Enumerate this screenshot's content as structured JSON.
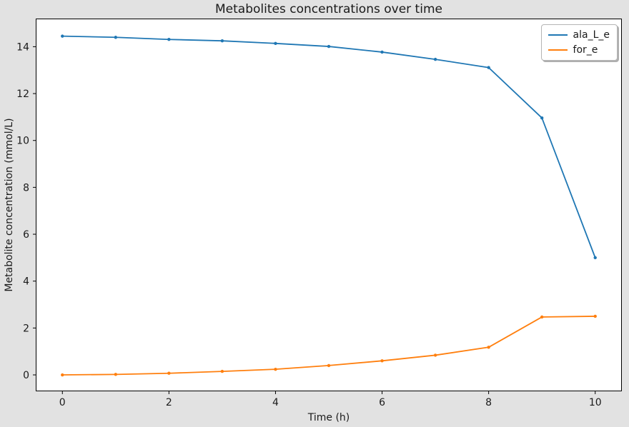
{
  "figure": {
    "background_color": "#e2e2e2",
    "plot_background_color": "#ffffff",
    "spine_color": "#000000"
  },
  "chart_data": {
    "type": "line",
    "title": "Metabolites concentrations over time",
    "xlabel": "Time (h)",
    "ylabel": "Metabolite concentration (mmol/L)",
    "x": [
      0,
      1,
      2,
      3,
      4,
      5,
      6,
      7,
      8,
      9,
      10
    ],
    "series": [
      {
        "name": "ala_L_e",
        "color": "#1f77b4",
        "values": [
          14.45,
          14.4,
          14.31,
          14.25,
          14.14,
          14.01,
          13.77,
          13.46,
          13.11,
          10.96,
          5.0
        ]
      },
      {
        "name": "for_e",
        "color": "#ff7f0e",
        "values": [
          0.0,
          0.02,
          0.07,
          0.15,
          0.24,
          0.4,
          0.6,
          0.84,
          1.18,
          2.47,
          2.5
        ]
      }
    ],
    "xlim": [
      -0.5,
      10.5
    ],
    "ylim": [
      -0.7,
      15.2
    ],
    "x_ticks": [
      0,
      2,
      4,
      6,
      8,
      10
    ],
    "y_ticks": [
      0,
      2,
      4,
      6,
      8,
      10,
      12,
      14
    ],
    "grid": false,
    "legend_position": "upper right",
    "marker": "point"
  }
}
